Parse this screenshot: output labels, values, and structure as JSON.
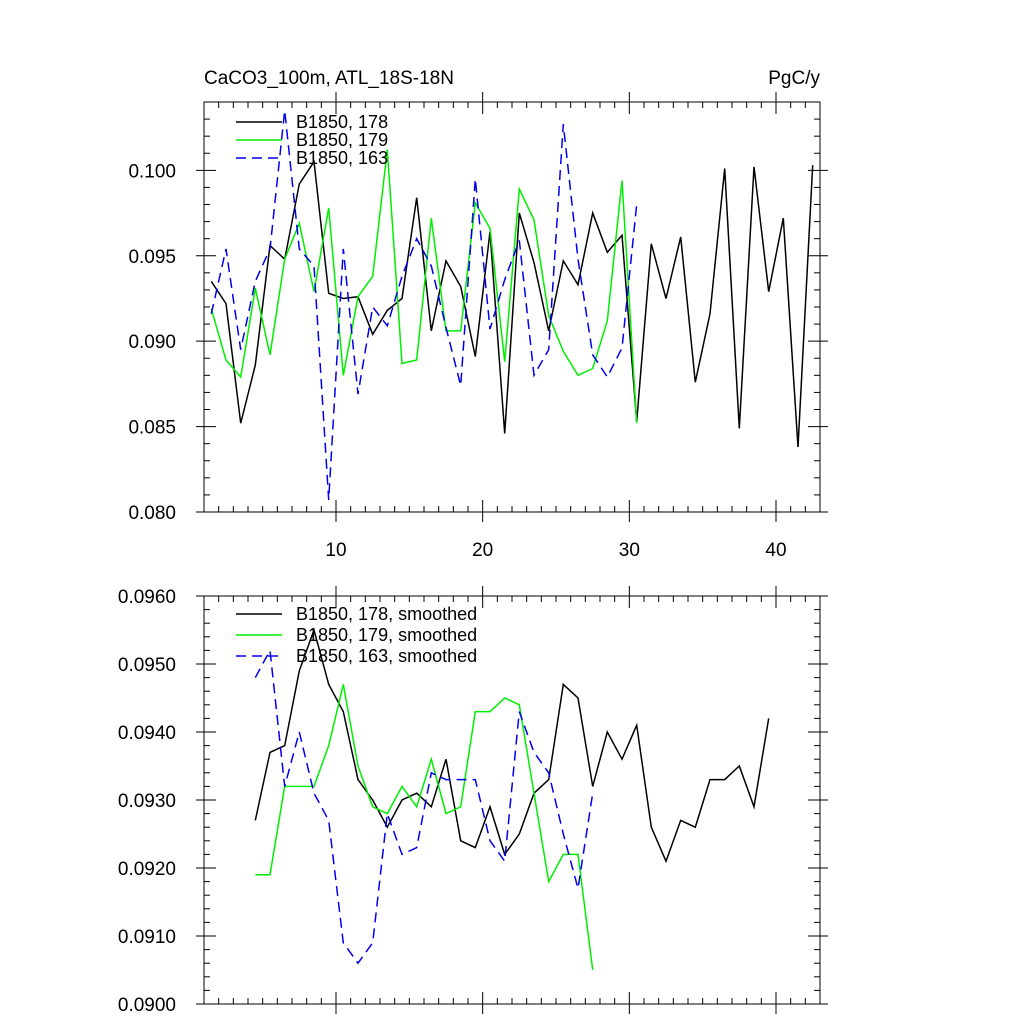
{
  "chart_data": [
    {
      "type": "line",
      "title": "CaCO3_100m, ATL_18S-18N",
      "units": "PgC/y",
      "xlim": [
        1,
        43
      ],
      "ylim": [
        0.08,
        0.104
      ],
      "xticks": [
        10,
        20,
        30,
        40
      ],
      "xtick_labels": [
        "10",
        "20",
        "30",
        "40"
      ],
      "yticks": [
        0.08,
        0.085,
        0.09,
        0.095,
        0.1
      ],
      "ytick_labels": [
        "0.080",
        "0.085",
        "0.090",
        "0.095",
        "0.100"
      ],
      "legend": "top-left",
      "series": [
        {
          "name": "B1850, 178",
          "color": "#000000",
          "dash": "solid",
          "x": [
            1.5,
            2.5,
            3.5,
            4.5,
            5.5,
            6.5,
            7.5,
            8.5,
            9.5,
            10.5,
            11.5,
            12.5,
            13.5,
            14.5,
            15.5,
            16.5,
            17.5,
            18.5,
            19.5,
            20.5,
            21.5,
            22.5,
            23.5,
            24.5,
            25.5,
            26.5,
            27.5,
            28.5,
            29.5,
            30.5,
            31.5,
            32.5,
            33.5,
            34.5,
            35.5,
            36.5,
            37.5,
            38.5,
            39.5,
            40.5,
            41.5,
            42.5
          ],
          "y": [
            0.0935,
            0.0922,
            0.0852,
            0.0886,
            0.0956,
            0.0948,
            0.0992,
            0.1005,
            0.0928,
            0.0925,
            0.0926,
            0.0904,
            0.0918,
            0.0925,
            0.0984,
            0.0906,
            0.0947,
            0.0932,
            0.0891,
            0.0964,
            0.0846,
            0.0975,
            0.0946,
            0.0906,
            0.0947,
            0.0933,
            0.0975,
            0.0952,
            0.0962,
            0.0853,
            0.0957,
            0.0925,
            0.0961,
            0.0876,
            0.0916,
            0.1001,
            0.0849,
            0.1002,
            0.0929,
            0.0972,
            0.0838,
            0.1003
          ]
        },
        {
          "name": "B1850, 179",
          "color": "#00ee00",
          "dash": "solid",
          "x": [
            1.5,
            2.5,
            3.5,
            4.5,
            5.5,
            6.5,
            7.5,
            8.5,
            9.5,
            10.5,
            11.5,
            12.5,
            13.5,
            14.5,
            15.5,
            16.5,
            17.5,
            18.5,
            19.5,
            20.5,
            21.5,
            22.5,
            23.5,
            24.5,
            25.5,
            26.5,
            27.5,
            28.5,
            29.5,
            30.5
          ],
          "y": [
            0.0919,
            0.0889,
            0.0879,
            0.0931,
            0.0892,
            0.0948,
            0.0969,
            0.0929,
            0.0978,
            0.088,
            0.0926,
            0.0938,
            0.1012,
            0.0887,
            0.0889,
            0.0972,
            0.0906,
            0.0906,
            0.0981,
            0.0966,
            0.0888,
            0.0989,
            0.0971,
            0.0915,
            0.0894,
            0.088,
            0.0884,
            0.0912,
            0.0994,
            0.0852
          ]
        },
        {
          "name": "B1850, 163",
          "color": "#0000ee",
          "dash": "dashed",
          "x": [
            1.5,
            2.5,
            3.5,
            4.5,
            5.5,
            6.5,
            7.5,
            8.5,
            9.5,
            10.5,
            11.5,
            12.5,
            13.5,
            14.5,
            15.5,
            16.5,
            17.5,
            18.5,
            19.5,
            20.5,
            21.5,
            22.5,
            23.5,
            24.5,
            25.5,
            26.5,
            27.5,
            28.5,
            29.5,
            30.5
          ],
          "y": [
            0.0916,
            0.0954,
            0.0895,
            0.0935,
            0.0954,
            0.1035,
            0.0954,
            0.0944,
            0.0807,
            0.0954,
            0.0869,
            0.092,
            0.0909,
            0.0938,
            0.096,
            0.0944,
            0.0908,
            0.0874,
            0.0995,
            0.0907,
            0.0936,
            0.0959,
            0.088,
            0.0895,
            0.1027,
            0.0948,
            0.0892,
            0.0879,
            0.0896,
            0.098
          ]
        }
      ]
    },
    {
      "type": "line",
      "title": "",
      "xlim": [
        1,
        43
      ],
      "ylim": [
        0.09,
        0.096
      ],
      "xticks": [
        10,
        20,
        30,
        40
      ],
      "xtick_labels": [],
      "yticks": [
        0.09,
        0.091,
        0.092,
        0.093,
        0.094,
        0.095,
        0.096
      ],
      "ytick_labels": [
        "0.0900",
        "0.0910",
        "0.0920",
        "0.0930",
        "0.0940",
        "0.0950",
        "0.0960"
      ],
      "legend": "top-left",
      "series": [
        {
          "name": "B1850, 178, smoothed",
          "color": "#000000",
          "dash": "solid",
          "x": [
            4.5,
            5.5,
            6.5,
            7.5,
            8.5,
            9.5,
            10.5,
            11.5,
            12.5,
            13.5,
            14.5,
            15.5,
            16.5,
            17.5,
            18.5,
            19.5,
            20.5,
            21.5,
            22.5,
            23.5,
            24.5,
            25.5,
            26.5,
            27.5,
            28.5,
            29.5,
            30.5,
            31.5,
            32.5,
            33.5,
            34.5,
            35.5,
            36.5,
            37.5,
            38.5,
            39.5
          ],
          "y": [
            0.0927,
            0.0937,
            0.0938,
            0.0949,
            0.0955,
            0.0947,
            0.0943,
            0.0933,
            0.093,
            0.0926,
            0.093,
            0.0931,
            0.0929,
            0.0936,
            0.0924,
            0.0923,
            0.0929,
            0.0922,
            0.0925,
            0.0931,
            0.0933,
            0.0947,
            0.0945,
            0.0932,
            0.094,
            0.0936,
            0.0941,
            0.0926,
            0.0921,
            0.0927,
            0.0926,
            0.0933,
            0.0933,
            0.0935,
            0.0929,
            0.0942
          ]
        },
        {
          "name": "B1850, 179, smoothed",
          "color": "#00ee00",
          "dash": "solid",
          "x": [
            4.5,
            5.5,
            6.5,
            7.5,
            8.5,
            9.5,
            10.5,
            11.5,
            12.5,
            13.5,
            14.5,
            15.5,
            16.5,
            17.5,
            18.5,
            19.5,
            20.5,
            21.5,
            22.5,
            23.5,
            24.5,
            25.5,
            26.5,
            27.5
          ],
          "y": [
            0.0919,
            0.0919,
            0.0932,
            0.0932,
            0.0932,
            0.0938,
            0.0947,
            0.0935,
            0.0929,
            0.0928,
            0.0932,
            0.0929,
            0.0936,
            0.0928,
            0.0929,
            0.0943,
            0.0943,
            0.0945,
            0.0944,
            0.0931,
            0.0918,
            0.0922,
            0.0922,
            0.0905
          ]
        },
        {
          "name": "B1850, 163, smoothed",
          "color": "#0000ee",
          "dash": "dashed",
          "x": [
            4.5,
            5.5,
            6.5,
            7.5,
            8.5,
            9.5,
            10.5,
            11.5,
            12.5,
            13.5,
            14.5,
            15.5,
            16.5,
            17.5,
            18.5,
            19.5,
            20.5,
            21.5,
            22.5,
            23.5,
            24.5,
            25.5,
            26.5,
            27.5
          ],
          "y": [
            0.0948,
            0.0952,
            0.0932,
            0.094,
            0.0931,
            0.0927,
            0.0909,
            0.0906,
            0.0909,
            0.0928,
            0.0922,
            0.0923,
            0.0934,
            0.0933,
            0.0933,
            0.0933,
            0.0924,
            0.0921,
            0.0943,
            0.0937,
            0.0934,
            0.0925,
            0.0917,
            0.0931
          ]
        }
      ]
    }
  ]
}
